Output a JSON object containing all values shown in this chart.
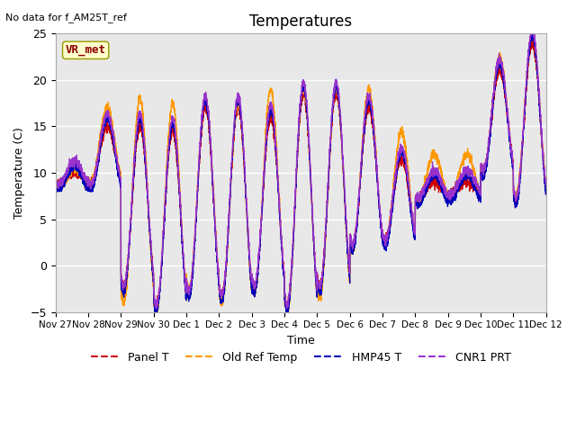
{
  "title": "Temperatures",
  "xlabel": "Time",
  "ylabel": "Temperature (C)",
  "ylim": [
    -5,
    25
  ],
  "top_text": "No data for f_AM25T_ref",
  "annotation_text": "VR_met",
  "legend_labels": [
    "Panel T",
    "Old Ref Temp",
    "HMP45 T",
    "CNR1 PRT"
  ],
  "legend_colors": [
    "#cc0000",
    "#ff9900",
    "#0000bb",
    "#9933cc"
  ],
  "xtick_labels": [
    "Nov 27",
    "Nov 28",
    "Nov 29",
    "Nov 30",
    "Dec 1",
    "Dec 2",
    "Dec 3",
    "Dec 4",
    "Dec 5",
    "Dec 6",
    "Dec 7",
    "Dec 8",
    "Dec 9",
    "Dec 10",
    "Dec 11",
    "Dec 12"
  ],
  "ytick_vals": [
    -5,
    0,
    5,
    10,
    15,
    20,
    25
  ],
  "plot_bg_color": "#e8e8e8",
  "grid_color": "white",
  "n_days": 15,
  "n_per_day": 288
}
